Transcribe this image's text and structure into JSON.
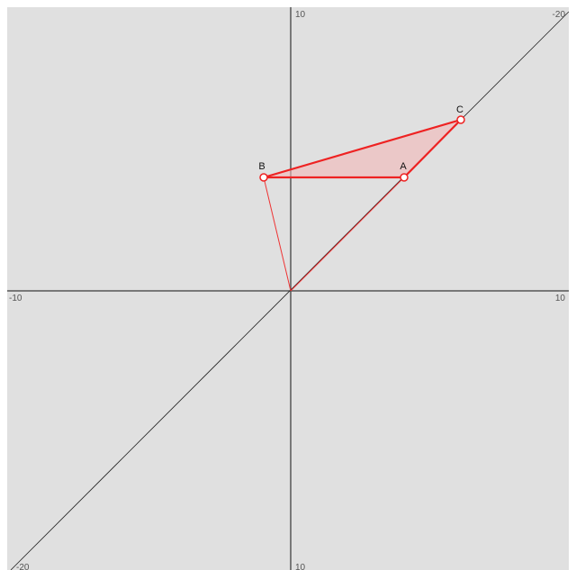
{
  "axes": {
    "top_label": "10",
    "top_right_label": "-20",
    "left_label": "-10",
    "right_label": "10",
    "bottom_left_label": "-20",
    "bottom_label": "10"
  },
  "points": [
    {
      "label": "A"
    },
    {
      "label": "B"
    },
    {
      "label": "C"
    }
  ]
}
